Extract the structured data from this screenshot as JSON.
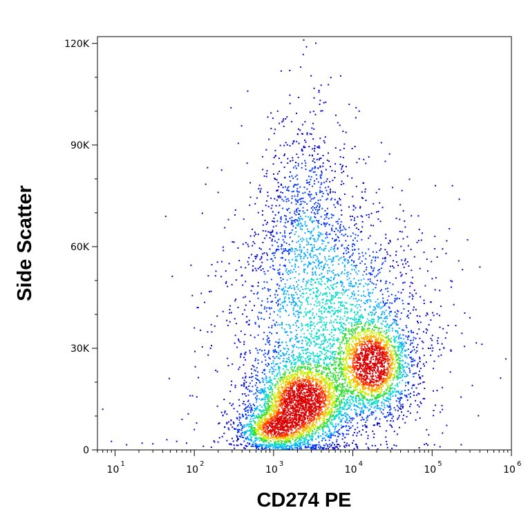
{
  "chart_data": {
    "type": "scatter",
    "title": "",
    "xlabel": "CD274 PE",
    "ylabel": "Side Scatter",
    "x_scale": "log",
    "xlim": [
      6,
      1000000
    ],
    "ylim": [
      0,
      122000
    ],
    "x_ticks": [
      {
        "value": 10,
        "base": "10",
        "exp": "1"
      },
      {
        "value": 100,
        "base": "10",
        "exp": "2"
      },
      {
        "value": 1000,
        "base": "10",
        "exp": "3"
      },
      {
        "value": 10000,
        "base": "10",
        "exp": "4"
      },
      {
        "value": 100000,
        "base": "10",
        "exp": "5"
      },
      {
        "value": 1000000,
        "base": "10",
        "exp": "6"
      }
    ],
    "y_ticks": [
      {
        "value": 0,
        "label": "0"
      },
      {
        "value": 30000,
        "label": "30K"
      },
      {
        "value": 60000,
        "label": "60K"
      },
      {
        "value": 90000,
        "label": "90K"
      },
      {
        "value": 120000,
        "label": "120K"
      }
    ],
    "grid": false,
    "legend": "none",
    "density_colors": [
      "#0000cc",
      "#0033ff",
      "#00aaff",
      "#00ddcc",
      "#33dd33",
      "#ccee00",
      "#ffaa00",
      "#ff3300",
      "#dd0000"
    ],
    "populations": [
      {
        "x_center": 2300,
        "y_center": 14000,
        "x_spread_decades": 0.28,
        "y_spread": 6000,
        "peak_density": 1.0
      },
      {
        "x_center": 18000,
        "y_center": 25000,
        "x_spread_decades": 0.22,
        "y_spread": 6500,
        "peak_density": 0.95
      },
      {
        "x_center": 1000,
        "y_center": 6000,
        "x_spread_decades": 0.22,
        "y_spread": 3000,
        "peak_density": 0.7
      },
      {
        "x_center": 5000,
        "y_center": 38000,
        "x_spread_decades": 0.55,
        "y_spread": 16000,
        "peak_density": 0.3
      },
      {
        "x_center": 2500,
        "y_center": 70000,
        "x_spread_decades": 0.25,
        "y_spread": 14000,
        "peak_density": 0.12
      }
    ],
    "outlier_points": [
      {
        "x": 2400,
        "y": 121000
      },
      {
        "x": 2600,
        "y": 119000
      },
      {
        "x": 2200,
        "y": 113000
      },
      {
        "x": 1600,
        "y": 112000
      },
      {
        "x": 290,
        "y": 101000
      },
      {
        "x": 9000,
        "y": 102000
      },
      {
        "x": 11000,
        "y": 101000
      },
      {
        "x": 12000,
        "y": 100000
      },
      {
        "x": 200,
        "y": 76000
      },
      {
        "x": 270,
        "y": 68000
      },
      {
        "x": 110000,
        "y": 78000
      },
      {
        "x": 180000,
        "y": 78000
      },
      {
        "x": 220000,
        "y": 74000
      },
      {
        "x": 280000,
        "y": 62000
      },
      {
        "x": 400000,
        "y": 54000
      },
      {
        "x": 300000,
        "y": 39000
      },
      {
        "x": 100,
        "y": 36000
      },
      {
        "x": 160,
        "y": 30000
      },
      {
        "x": 9,
        "y": 2500
      },
      {
        "x": 7,
        "y": 12000
      },
      {
        "x": 14,
        "y": 1500
      },
      {
        "x": 22,
        "y": 2000
      },
      {
        "x": 30,
        "y": 1800
      },
      {
        "x": 45,
        "y": 3000
      },
      {
        "x": 60,
        "y": 2500
      },
      {
        "x": 70,
        "y": 9000
      },
      {
        "x": 80,
        "y": 2000
      },
      {
        "x": 95,
        "y": 16000
      },
      {
        "x": 100,
        "y": 6000
      },
      {
        "x": 170000,
        "y": 23000
      },
      {
        "x": 130000,
        "y": 28000
      },
      {
        "x": 90000,
        "y": 30000
      },
      {
        "x": 60000,
        "y": 57000
      },
      {
        "x": 75000,
        "y": 64000
      },
      {
        "x": 150000,
        "y": 58000
      }
    ]
  }
}
